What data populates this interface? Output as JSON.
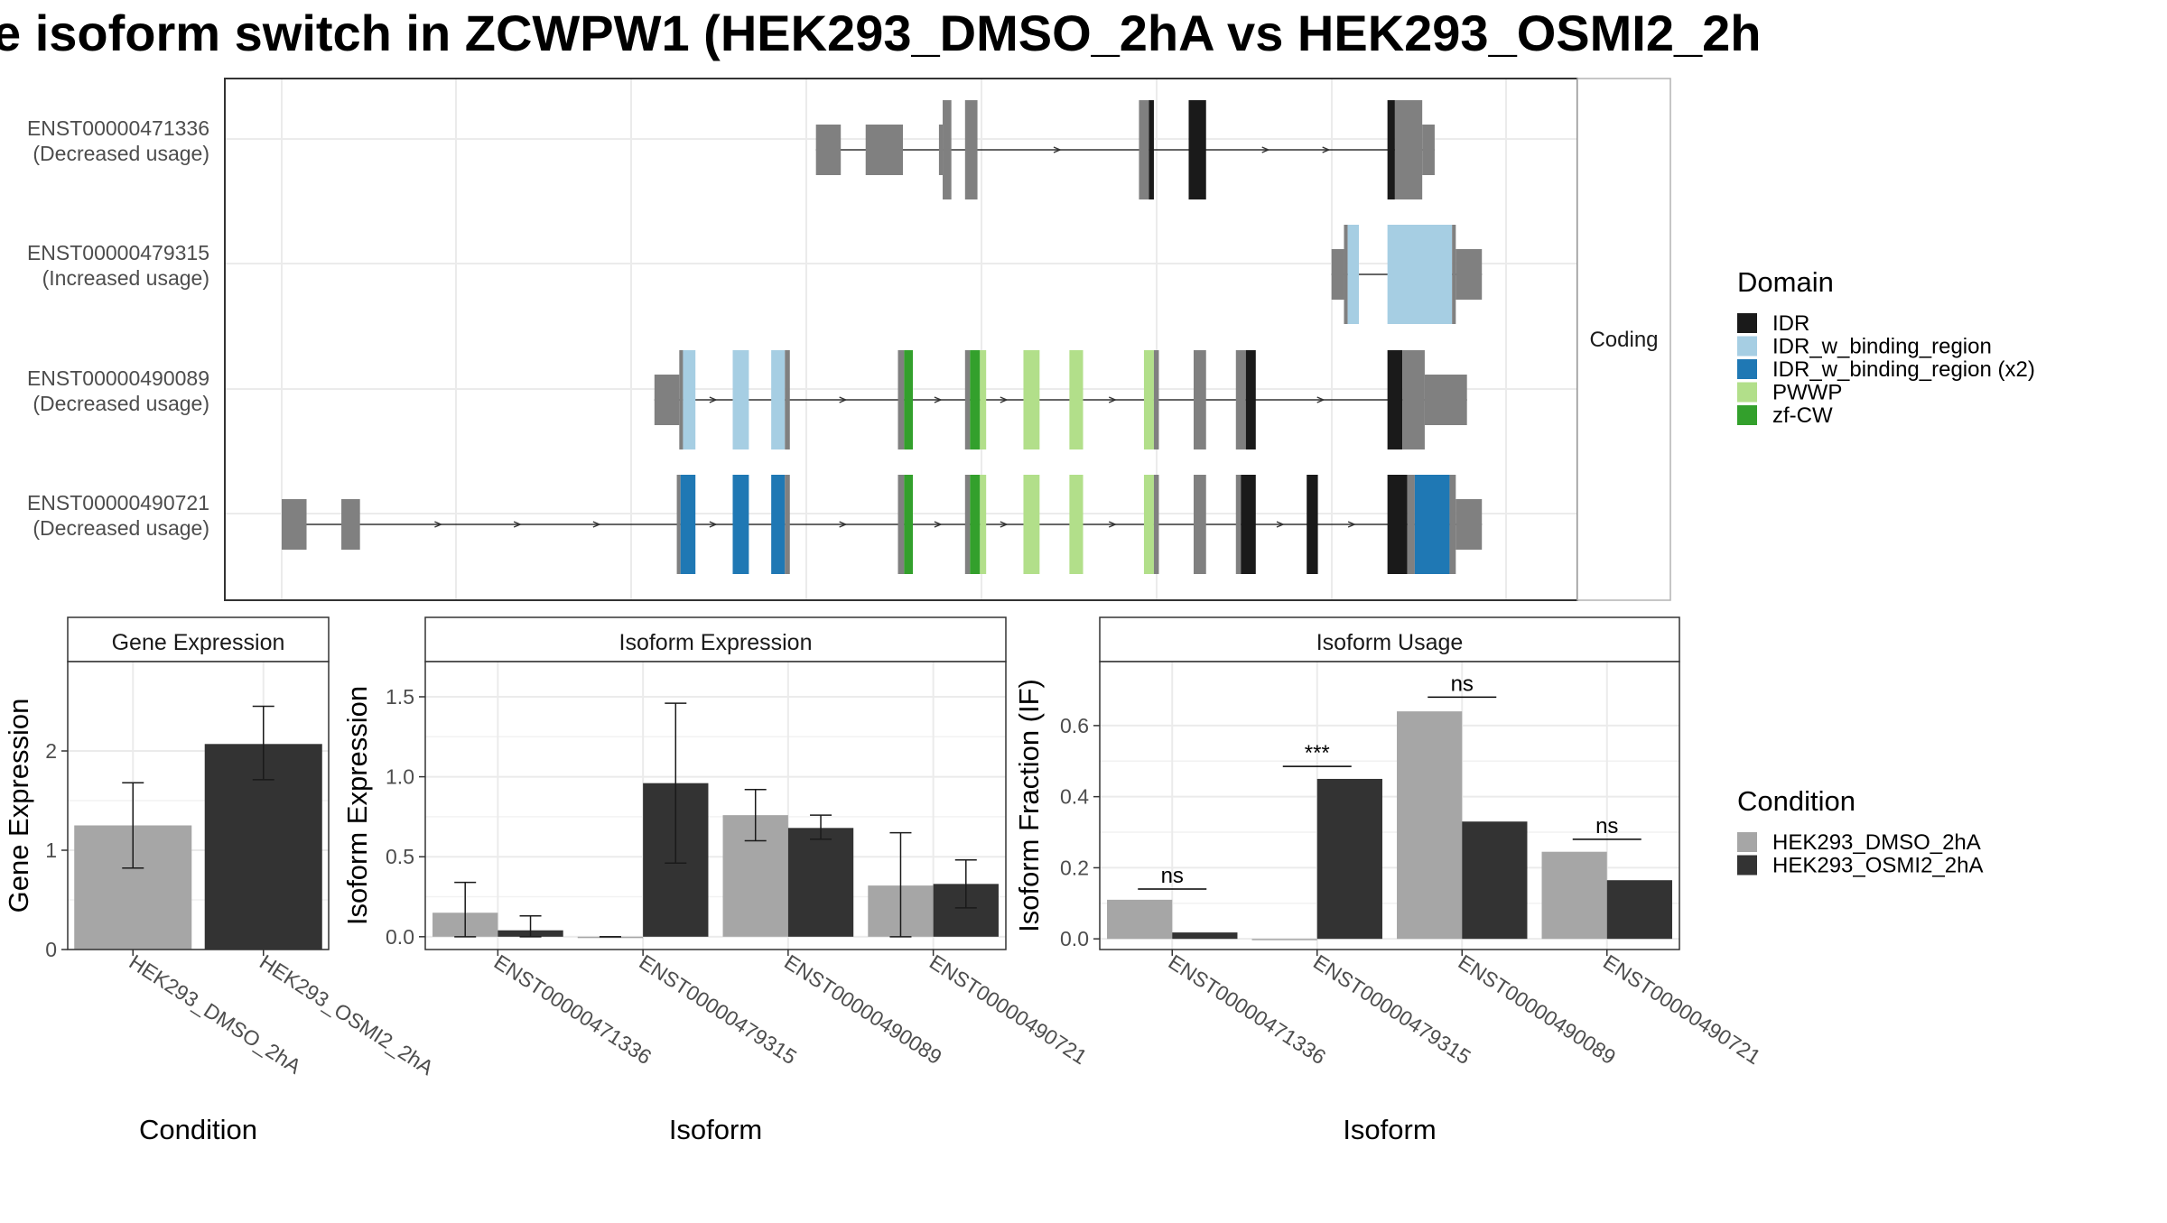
{
  "title": "e isoform switch in ZCWPW1 (HEK293_DMSO_2hA vs HEK293_OSMI2_2h",
  "colors": {
    "background": "#ffffff",
    "grid": "#ebebeb",
    "panel_border": "#333333",
    "strip_border": "#b3b3b3",
    "utr_exon": "#808080",
    "intron": "#333333",
    "cond_dmso": "#a6a6a6",
    "cond_osmi": "#333333"
  },
  "structure": {
    "facet_label": "Coding",
    "transcripts": [
      {
        "id": "ENST00000471336",
        "usage": "(Decreased usage)",
        "exons": [
          [
            0.43,
            0.45,
            "utr",
            0
          ],
          [
            0.47,
            0.5,
            "utr",
            0
          ],
          [
            0.529,
            0.532,
            "utr",
            0
          ],
          [
            0.532,
            0.539,
            "utr",
            1
          ],
          [
            0.55,
            0.56,
            "utr",
            1
          ],
          [
            0.69,
            0.698,
            "utr",
            1
          ],
          [
            0.698,
            0.702,
            "IDR",
            1
          ],
          [
            0.73,
            0.744,
            "IDR",
            1
          ],
          [
            0.89,
            0.896,
            "IDR",
            1
          ],
          [
            0.896,
            0.918,
            "utr",
            1
          ],
          [
            0.918,
            0.928,
            "utr",
            0
          ]
        ]
      },
      {
        "id": "ENST00000479315",
        "usage": "(Increased usage)",
        "exons": [
          [
            0.845,
            0.855,
            "utr",
            0
          ],
          [
            0.855,
            0.858,
            "utr",
            1
          ],
          [
            0.858,
            0.867,
            "IDR_w_binding_region",
            1
          ],
          [
            0.89,
            0.942,
            "IDR_w_binding_region",
            1
          ],
          [
            0.942,
            0.945,
            "utr",
            1
          ],
          [
            0.945,
            0.966,
            "utr",
            0
          ]
        ]
      },
      {
        "id": "ENST00000490089",
        "usage": "(Decreased usage)",
        "exons": [
          [
            0.3,
            0.32,
            "utr",
            0
          ],
          [
            0.32,
            0.323,
            "utr",
            1
          ],
          [
            0.323,
            0.333,
            "IDR_w_binding_region",
            1
          ],
          [
            0.363,
            0.376,
            "IDR_w_binding_region",
            1
          ],
          [
            0.394,
            0.405,
            "IDR_w_binding_region",
            1
          ],
          [
            0.405,
            0.409,
            "utr",
            1
          ],
          [
            0.496,
            0.501,
            "utr",
            1
          ],
          [
            0.501,
            0.508,
            "zf-CW",
            1
          ],
          [
            0.55,
            0.554,
            "utr",
            1
          ],
          [
            0.554,
            0.562,
            "zf-CW",
            1
          ],
          [
            0.562,
            0.567,
            "PWWP",
            1
          ],
          [
            0.597,
            0.61,
            "PWWP",
            1
          ],
          [
            0.634,
            0.645,
            "PWWP",
            1
          ],
          [
            0.694,
            0.702,
            "PWWP",
            1
          ],
          [
            0.702,
            0.706,
            "utr",
            1
          ],
          [
            0.734,
            0.744,
            "utr",
            1
          ],
          [
            0.768,
            0.776,
            "utr",
            1
          ],
          [
            0.776,
            0.784,
            "IDR",
            1
          ],
          [
            0.89,
            0.902,
            "IDR",
            1
          ],
          [
            0.902,
            0.92,
            "utr",
            1
          ],
          [
            0.92,
            0.954,
            "utr",
            0
          ]
        ]
      },
      {
        "id": "ENST00000490721",
        "usage": "(Decreased usage)",
        "exons": [
          [
            0.0,
            0.02,
            "utr",
            0
          ],
          [
            0.048,
            0.063,
            "utr",
            0
          ],
          [
            0.318,
            0.321,
            "utr",
            1
          ],
          [
            0.321,
            0.333,
            "IDR_w_binding_region_x2",
            1
          ],
          [
            0.363,
            0.376,
            "IDR_w_binding_region_x2",
            1
          ],
          [
            0.394,
            0.405,
            "IDR_w_binding_region_x2",
            1
          ],
          [
            0.405,
            0.409,
            "utr",
            1
          ],
          [
            0.496,
            0.501,
            "utr",
            1
          ],
          [
            0.501,
            0.508,
            "zf-CW",
            1
          ],
          [
            0.55,
            0.554,
            "utr",
            1
          ],
          [
            0.554,
            0.562,
            "zf-CW",
            1
          ],
          [
            0.562,
            0.567,
            "PWWP",
            1
          ],
          [
            0.597,
            0.61,
            "PWWP",
            1
          ],
          [
            0.634,
            0.645,
            "PWWP",
            1
          ],
          [
            0.694,
            0.702,
            "PWWP",
            1
          ],
          [
            0.702,
            0.706,
            "utr",
            1
          ],
          [
            0.734,
            0.744,
            "utr",
            1
          ],
          [
            0.768,
            0.772,
            "utr",
            1
          ],
          [
            0.772,
            0.784,
            "IDR",
            1
          ],
          [
            0.825,
            0.834,
            "IDR",
            1
          ],
          [
            0.89,
            0.906,
            "IDR",
            1
          ],
          [
            0.906,
            0.912,
            "utr",
            1
          ],
          [
            0.912,
            0.94,
            "IDR_w_binding_region_x2",
            1
          ],
          [
            0.94,
            0.945,
            "utr",
            1
          ],
          [
            0.945,
            0.966,
            "utr",
            0
          ]
        ]
      }
    ]
  },
  "legend_domain": {
    "title": "Domain",
    "items": [
      {
        "label": "IDR",
        "color": "#1a1a1a"
      },
      {
        "label": "IDR_w_binding_region",
        "color": "#a6cee3"
      },
      {
        "label": "IDR_w_binding_region (x2)",
        "color": "#1f78b4"
      },
      {
        "label": "PWWP",
        "color": "#b2df8a"
      },
      {
        "label": "zf-CW",
        "color": "#33a02c"
      }
    ]
  },
  "legend_condition": {
    "title": "Condition",
    "items": [
      {
        "label": "HEK293_DMSO_2hA",
        "color": "#a6a6a6"
      },
      {
        "label": "HEK293_OSMI2_2hA",
        "color": "#333333"
      }
    ]
  },
  "chart_data": [
    {
      "type": "bar",
      "title": "Gene Expression",
      "xlabel": "Condition",
      "ylabel": "Gene Expression",
      "categories": [
        "HEK293_DMSO_2hA",
        "HEK293_OSMI2_2hA"
      ],
      "values": [
        1.25,
        2.07
      ],
      "error_low": [
        0.82,
        1.71
      ],
      "error_high": [
        1.68,
        2.45
      ],
      "ylim": [
        0,
        2.9
      ],
      "yticks": [
        0,
        1,
        2
      ],
      "grid": true,
      "legend": "right"
    },
    {
      "type": "bar",
      "title": "Isoform Expression",
      "xlabel": "Isoform",
      "ylabel": "Isoform Expression",
      "categories": [
        "ENST00000471336",
        "ENST00000479315",
        "ENST00000490089",
        "ENST00000490721"
      ],
      "series": [
        {
          "name": "HEK293_DMSO_2hA",
          "values": [
            0.15,
            0.0,
            0.76,
            0.32
          ],
          "error_low": [
            0.0,
            0.0,
            0.6,
            0.0
          ],
          "error_high": [
            0.34,
            0.0,
            0.92,
            0.65
          ]
        },
        {
          "name": "HEK293_OSMI2_2hA",
          "values": [
            0.04,
            0.96,
            0.68,
            0.33
          ],
          "error_low": [
            0.0,
            0.46,
            0.61,
            0.18
          ],
          "error_high": [
            0.13,
            1.46,
            0.76,
            0.48
          ]
        }
      ],
      "ylim": [
        -0.08,
        1.72
      ],
      "yticks": [
        0.0,
        0.5,
        1.0,
        1.5
      ],
      "grid": true
    },
    {
      "type": "bar",
      "title": "Isoform Usage",
      "xlabel": "Isoform",
      "ylabel": "Isoform Fraction (IF)",
      "categories": [
        "ENST00000471336",
        "ENST00000479315",
        "ENST00000490089",
        "ENST00000490721"
      ],
      "series": [
        {
          "name": "HEK293_DMSO_2hA",
          "values": [
            0.11,
            0.0,
            0.64,
            0.245
          ]
        },
        {
          "name": "HEK293_OSMI2_2hA",
          "values": [
            0.018,
            0.45,
            0.33,
            0.165
          ]
        }
      ],
      "significance": [
        "ns",
        "***",
        "ns",
        "ns"
      ],
      "sig_level": [
        0.14,
        0.485,
        0.68,
        0.28
      ],
      "ylim": [
        -0.03,
        0.78
      ],
      "yticks": [
        0.0,
        0.2,
        0.4,
        0.6
      ],
      "grid": true
    }
  ]
}
